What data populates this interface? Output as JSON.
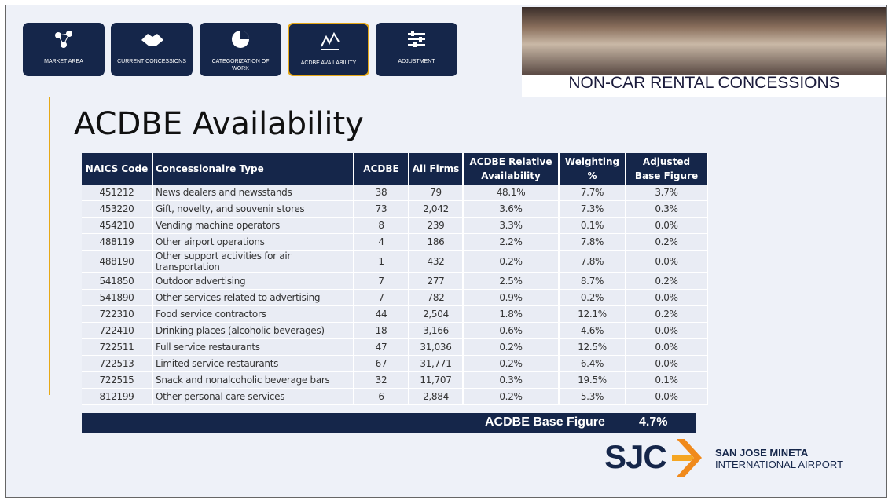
{
  "nav": [
    {
      "label": "MARKET AREA"
    },
    {
      "label": "CURRENT CONCESSIONS"
    },
    {
      "label": "CATEGORIZATION OF WORK"
    },
    {
      "label": "ACDBE AVAILABILITY"
    },
    {
      "label": "ADJUSTMENT"
    }
  ],
  "banner": {
    "title": "NON-CAR RENTAL CONCESSIONS"
  },
  "title": "ACDBE Availability",
  "table": {
    "columns": [
      "NAICS Code",
      "Concessionaire  Type",
      "ACDBE",
      "All Firms",
      "ACDBE Relative Availability",
      "Weighting %",
      "Adjusted Base Figure"
    ],
    "rows": [
      [
        "451212",
        "News dealers and newsstands",
        "38",
        "79",
        "48.1%",
        "7.7%",
        "3.7%"
      ],
      [
        "453220",
        "Gift, novelty, and souvenir stores",
        "73",
        "2,042",
        "3.6%",
        "7.3%",
        "0.3%"
      ],
      [
        "454210",
        "Vending machine operators",
        "8",
        "239",
        "3.3%",
        "0.1%",
        "0.0%"
      ],
      [
        "488119",
        "Other airport operations",
        "4",
        "186",
        "2.2%",
        "7.8%",
        "0.2%"
      ],
      [
        "488190",
        "Other support activities for air transportation",
        "1",
        "432",
        "0.2%",
        "7.8%",
        "0.0%"
      ],
      [
        "541850",
        "Outdoor advertising",
        "7",
        "277",
        "2.5%",
        "8.7%",
        "0.2%"
      ],
      [
        "541890",
        "Other services related to advertising",
        "7",
        "782",
        "0.9%",
        "0.2%",
        "0.0%"
      ],
      [
        "722310",
        "Food service contractors",
        "44",
        "2,504",
        "1.8%",
        "12.1%",
        "0.2%"
      ],
      [
        "722410",
        "Drinking places (alcoholic beverages)",
        "18",
        "3,166",
        "0.6%",
        "4.6%",
        "0.0%"
      ],
      [
        "722511",
        "Full service restaurants",
        "47",
        "31,036",
        "0.2%",
        "12.5%",
        "0.0%"
      ],
      [
        "722513",
        "Limited service restaurants",
        "67",
        "31,771",
        "0.2%",
        "6.4%",
        "0.0%"
      ],
      [
        "722515",
        "Snack and nonalcoholic beverage bars",
        "32",
        "11,707",
        "0.3%",
        "19.5%",
        "0.1%"
      ],
      [
        "812199",
        "Other personal care services",
        "6",
        "2,884",
        "0.2%",
        "5.3%",
        "0.0%"
      ]
    ],
    "footer": {
      "label": "ACDBE Base Figure",
      "value": "4.7%"
    }
  },
  "logo": {
    "mark": "SJC",
    "line1": "SAN JOSE MINETA",
    "line2": "INTERNATIONAL AIRPORT"
  }
}
